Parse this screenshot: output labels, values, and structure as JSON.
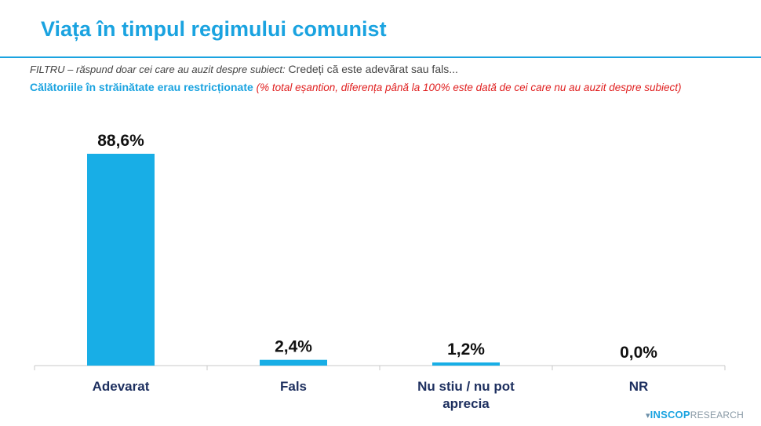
{
  "header": {
    "title": "Viața în timpul regimului comunist",
    "filter_label": "FILTRU – răspund doar cei care au auzit despre subiect:",
    "filter_question": "Credeți că este adevărat sau fals...",
    "question_main": "Călătoriile în străinătate erau restricționate",
    "question_note": "(% total eșantion, diferența până la 100% este dată de cei care nu au auzit despre subiect)"
  },
  "colors": {
    "accent": "#1aa3e0",
    "note": "#e02020",
    "bar": "#18aee6",
    "axis": "#c8c8c8"
  },
  "chart_data": {
    "type": "bar",
    "categories": [
      "Adevarat",
      "Fals",
      "Nu stiu / nu pot aprecia",
      "NR"
    ],
    "category_lines": [
      [
        "Adevarat"
      ],
      [
        "Fals"
      ],
      [
        "Nu stiu / nu pot",
        "aprecia"
      ],
      [
        "NR"
      ]
    ],
    "values": [
      88.6,
      2.4,
      1.2,
      0.0
    ],
    "data_labels": [
      "88,6%",
      "2,4%",
      "1,2%",
      "0,0%"
    ],
    "unit": "%",
    "ylim": [
      0,
      100
    ],
    "grid": false,
    "legend": "none"
  },
  "footer": {
    "logo_mark": "▾",
    "logo_brand": "INSCOP",
    "logo_sub": "RESEARCH"
  }
}
